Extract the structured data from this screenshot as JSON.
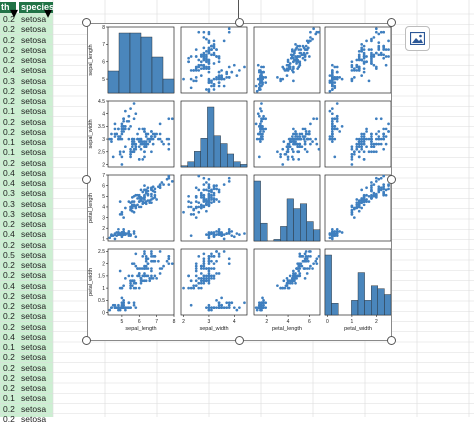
{
  "columns": {
    "left_header": "th",
    "species_header": "species"
  },
  "rows": [
    {
      "petal_width": "0.2",
      "species": "setosa"
    },
    {
      "petal_width": "0.2",
      "species": "setosa"
    },
    {
      "petal_width": "0.2",
      "species": "setosa"
    },
    {
      "petal_width": "0.2",
      "species": "setosa"
    },
    {
      "petal_width": "0.2",
      "species": "setosa"
    },
    {
      "petal_width": "0.4",
      "species": "setosa"
    },
    {
      "petal_width": "0.3",
      "species": "setosa"
    },
    {
      "petal_width": "0.2",
      "species": "setosa"
    },
    {
      "petal_width": "0.2",
      "species": "setosa"
    },
    {
      "petal_width": "0.1",
      "species": "setosa"
    },
    {
      "petal_width": "0.2",
      "species": "setosa"
    },
    {
      "petal_width": "0.2",
      "species": "setosa"
    },
    {
      "petal_width": "0.1",
      "species": "setosa"
    },
    {
      "petal_width": "0.1",
      "species": "setosa"
    },
    {
      "petal_width": "0.2",
      "species": "setosa"
    },
    {
      "petal_width": "0.4",
      "species": "setosa"
    },
    {
      "petal_width": "0.4",
      "species": "setosa"
    },
    {
      "petal_width": "0.3",
      "species": "setosa"
    },
    {
      "petal_width": "0.3",
      "species": "setosa"
    },
    {
      "petal_width": "0.3",
      "species": "setosa"
    },
    {
      "petal_width": "0.2",
      "species": "setosa"
    },
    {
      "petal_width": "0.4",
      "species": "setosa"
    },
    {
      "petal_width": "0.2",
      "species": "setosa"
    },
    {
      "petal_width": "0.5",
      "species": "setosa"
    },
    {
      "petal_width": "0.2",
      "species": "setosa"
    },
    {
      "petal_width": "0.2",
      "species": "setosa"
    },
    {
      "petal_width": "0.4",
      "species": "setosa"
    },
    {
      "petal_width": "0.2",
      "species": "setosa"
    },
    {
      "petal_width": "0.2",
      "species": "setosa"
    },
    {
      "petal_width": "0.2",
      "species": "setosa"
    },
    {
      "petal_width": "0.2",
      "species": "setosa"
    },
    {
      "petal_width": "0.4",
      "species": "setosa"
    },
    {
      "petal_width": "0.1",
      "species": "setosa"
    },
    {
      "petal_width": "0.2",
      "species": "setosa"
    },
    {
      "petal_width": "0.2",
      "species": "setosa"
    },
    {
      "petal_width": "0.2",
      "species": "setosa"
    },
    {
      "petal_width": "0.2",
      "species": "setosa"
    },
    {
      "petal_width": "0.1",
      "species": "setosa"
    },
    {
      "petal_width": "0.2",
      "species": "setosa"
    },
    {
      "petal_width": "0.2",
      "species": "setosa"
    }
  ],
  "chart_data": {
    "type": "pairplot",
    "variables": [
      "sepal_length",
      "sepal_width",
      "petal_length",
      "petal_width"
    ],
    "axis_ticks": {
      "sepal_length": [
        5,
        6,
        7,
        8
      ],
      "sepal_width": [
        2,
        3,
        4
      ],
      "petal_length": [
        2,
        4,
        6
      ],
      "petal_width": [
        0,
        1,
        2
      ]
    },
    "y_ticks": {
      "sepal_length": [
        5,
        6,
        7,
        8
      ],
      "sepal_width": [
        2.0,
        2.5,
        3.0,
        3.5,
        4.0,
        4.5
      ],
      "petal_length": [
        1,
        2,
        3,
        4,
        5,
        6,
        7
      ],
      "petal_width": [
        0.0,
        0.5,
        1.0,
        1.5,
        2.0,
        2.5
      ]
    },
    "ranges": {
      "sepal_length": [
        4.2,
        8.0
      ],
      "sepal_width": [
        1.9,
        4.5
      ],
      "petal_length": [
        0.8,
        7.0
      ],
      "petal_width": [
        -0.1,
        2.6
      ]
    },
    "histograms": {
      "sepal_length": [
        11,
        30,
        30,
        28,
        18,
        7
      ],
      "sepal_width": [
        1,
        4,
        12,
        22,
        46,
        24,
        18,
        10,
        4,
        2
      ],
      "petal_length": [
        37,
        11,
        0,
        1,
        9,
        26,
        20,
        23,
        12,
        7
      ],
      "petal_width": [
        41,
        8,
        0,
        0,
        10,
        29,
        10,
        20,
        18,
        14
      ]
    },
    "color": "#3f7fbf",
    "bar_color": "#4a86bc",
    "points": [
      [
        5.1,
        3.5,
        1.4,
        0.2
      ],
      [
        4.9,
        3.0,
        1.4,
        0.2
      ],
      [
        4.7,
        3.2,
        1.3,
        0.2
      ],
      [
        4.6,
        3.1,
        1.5,
        0.2
      ],
      [
        5.0,
        3.6,
        1.4,
        0.2
      ],
      [
        5.4,
        3.9,
        1.7,
        0.4
      ],
      [
        4.6,
        3.4,
        1.4,
        0.3
      ],
      [
        5.0,
        3.4,
        1.5,
        0.2
      ],
      [
        4.4,
        2.9,
        1.4,
        0.2
      ],
      [
        4.9,
        3.1,
        1.5,
        0.1
      ],
      [
        5.4,
        3.7,
        1.5,
        0.2
      ],
      [
        4.8,
        3.4,
        1.6,
        0.2
      ],
      [
        4.8,
        3.0,
        1.4,
        0.1
      ],
      [
        4.3,
        3.0,
        1.1,
        0.1
      ],
      [
        5.8,
        4.0,
        1.2,
        0.2
      ],
      [
        5.7,
        4.4,
        1.5,
        0.4
      ],
      [
        5.4,
        3.9,
        1.3,
        0.4
      ],
      [
        5.1,
        3.5,
        1.4,
        0.3
      ],
      [
        5.7,
        3.8,
        1.7,
        0.3
      ],
      [
        5.1,
        3.8,
        1.5,
        0.3
      ],
      [
        5.4,
        3.4,
        1.7,
        0.2
      ],
      [
        5.1,
        3.7,
        1.5,
        0.4
      ],
      [
        4.6,
        3.6,
        1.0,
        0.2
      ],
      [
        5.1,
        3.3,
        1.7,
        0.5
      ],
      [
        4.8,
        3.4,
        1.9,
        0.2
      ],
      [
        5.0,
        3.0,
        1.6,
        0.2
      ],
      [
        5.0,
        3.4,
        1.6,
        0.4
      ],
      [
        5.2,
        3.5,
        1.5,
        0.2
      ],
      [
        5.2,
        3.4,
        1.4,
        0.2
      ],
      [
        4.7,
        3.2,
        1.6,
        0.2
      ],
      [
        4.8,
        3.1,
        1.6,
        0.2
      ],
      [
        5.4,
        3.4,
        1.5,
        0.4
      ],
      [
        5.2,
        4.1,
        1.5,
        0.1
      ],
      [
        5.5,
        4.2,
        1.4,
        0.2
      ],
      [
        4.9,
        3.1,
        1.5,
        0.2
      ],
      [
        5.0,
        3.2,
        1.2,
        0.2
      ],
      [
        5.5,
        3.5,
        1.3,
        0.2
      ],
      [
        4.4,
        3.0,
        1.3,
        0.2
      ],
      [
        5.1,
        3.4,
        1.5,
        0.2
      ],
      [
        5.0,
        3.5,
        1.3,
        0.3
      ],
      [
        4.5,
        2.3,
        1.3,
        0.3
      ],
      [
        4.4,
        3.2,
        1.3,
        0.2
      ],
      [
        5.0,
        3.5,
        1.6,
        0.6
      ],
      [
        5.1,
        3.8,
        1.9,
        0.4
      ],
      [
        4.8,
        3.0,
        1.4,
        0.3
      ],
      [
        5.1,
        3.8,
        1.6,
        0.2
      ],
      [
        4.6,
        3.2,
        1.4,
        0.2
      ],
      [
        5.3,
        3.7,
        1.5,
        0.2
      ],
      [
        5.0,
        3.3,
        1.4,
        0.2
      ],
      [
        7.0,
        3.2,
        4.7,
        1.4
      ],
      [
        6.4,
        3.2,
        4.5,
        1.5
      ],
      [
        6.9,
        3.1,
        4.9,
        1.5
      ],
      [
        5.5,
        2.3,
        4.0,
        1.3
      ],
      [
        6.5,
        2.8,
        4.6,
        1.5
      ],
      [
        5.7,
        2.8,
        4.5,
        1.3
      ],
      [
        6.3,
        3.3,
        4.7,
        1.6
      ],
      [
        4.9,
        2.4,
        3.3,
        1.0
      ],
      [
        6.6,
        2.9,
        4.6,
        1.3
      ],
      [
        5.2,
        2.7,
        3.9,
        1.4
      ],
      [
        5.0,
        2.0,
        3.5,
        1.0
      ],
      [
        5.9,
        3.0,
        4.2,
        1.5
      ],
      [
        6.0,
        2.2,
        4.0,
        1.0
      ],
      [
        6.1,
        2.9,
        4.7,
        1.4
      ],
      [
        5.6,
        2.9,
        3.6,
        1.3
      ],
      [
        6.7,
        3.1,
        4.4,
        1.4
      ],
      [
        5.6,
        3.0,
        4.5,
        1.5
      ],
      [
        5.8,
        2.7,
        4.1,
        1.0
      ],
      [
        6.2,
        2.2,
        4.5,
        1.5
      ],
      [
        5.6,
        2.5,
        3.9,
        1.1
      ],
      [
        5.9,
        3.2,
        4.8,
        1.8
      ],
      [
        6.1,
        2.8,
        4.0,
        1.3
      ],
      [
        6.3,
        2.5,
        4.9,
        1.5
      ],
      [
        6.1,
        2.8,
        4.7,
        1.2
      ],
      [
        6.4,
        2.9,
        4.3,
        1.3
      ],
      [
        6.6,
        3.0,
        4.4,
        1.4
      ],
      [
        6.8,
        2.8,
        4.8,
        1.4
      ],
      [
        6.7,
        3.0,
        5.0,
        1.7
      ],
      [
        6.0,
        2.9,
        4.5,
        1.5
      ],
      [
        5.7,
        2.6,
        3.5,
        1.0
      ],
      [
        5.5,
        2.4,
        3.8,
        1.1
      ],
      [
        5.5,
        2.4,
        3.7,
        1.0
      ],
      [
        5.8,
        2.7,
        3.9,
        1.2
      ],
      [
        6.0,
        2.7,
        5.1,
        1.6
      ],
      [
        5.4,
        3.0,
        4.5,
        1.5
      ],
      [
        6.0,
        3.4,
        4.5,
        1.6
      ],
      [
        6.7,
        3.1,
        4.7,
        1.5
      ],
      [
        6.3,
        2.3,
        4.4,
        1.3
      ],
      [
        5.6,
        3.0,
        4.1,
        1.3
      ],
      [
        5.5,
        2.5,
        4.0,
        1.3
      ],
      [
        5.5,
        2.6,
        4.4,
        1.2
      ],
      [
        6.1,
        3.0,
        4.6,
        1.4
      ],
      [
        5.8,
        2.6,
        4.0,
        1.2
      ],
      [
        5.0,
        2.3,
        3.3,
        1.0
      ],
      [
        5.6,
        2.7,
        4.2,
        1.3
      ],
      [
        5.7,
        3.0,
        4.2,
        1.2
      ],
      [
        5.7,
        2.9,
        4.2,
        1.3
      ],
      [
        6.2,
        2.9,
        4.3,
        1.3
      ],
      [
        5.1,
        2.5,
        3.0,
        1.1
      ],
      [
        5.7,
        2.8,
        4.1,
        1.3
      ],
      [
        6.3,
        3.3,
        6.0,
        2.5
      ],
      [
        5.8,
        2.7,
        5.1,
        1.9
      ],
      [
        7.1,
        3.0,
        5.9,
        2.1
      ],
      [
        6.3,
        2.9,
        5.6,
        1.8
      ],
      [
        6.5,
        3.0,
        5.8,
        2.2
      ],
      [
        7.6,
        3.0,
        6.6,
        2.1
      ],
      [
        4.9,
        2.5,
        4.5,
        1.7
      ],
      [
        7.3,
        2.9,
        6.3,
        1.8
      ],
      [
        6.7,
        2.5,
        5.8,
        1.8
      ],
      [
        7.2,
        3.6,
        6.1,
        2.5
      ],
      [
        6.5,
        3.2,
        5.1,
        2.0
      ],
      [
        6.4,
        2.7,
        5.3,
        1.9
      ],
      [
        6.8,
        3.0,
        5.5,
        2.1
      ],
      [
        5.7,
        2.5,
        5.0,
        2.0
      ],
      [
        5.8,
        2.8,
        5.1,
        2.4
      ],
      [
        6.4,
        3.2,
        5.3,
        2.3
      ],
      [
        6.5,
        3.0,
        5.5,
        1.8
      ],
      [
        7.7,
        3.8,
        6.7,
        2.2
      ],
      [
        7.7,
        2.6,
        6.9,
        2.3
      ],
      [
        6.0,
        2.2,
        5.0,
        1.5
      ],
      [
        6.9,
        3.2,
        5.7,
        2.3
      ],
      [
        5.6,
        2.8,
        4.9,
        2.0
      ],
      [
        7.7,
        2.8,
        6.7,
        2.0
      ],
      [
        6.3,
        2.7,
        4.9,
        1.8
      ],
      [
        6.7,
        3.3,
        5.7,
        2.1
      ],
      [
        7.2,
        3.2,
        6.0,
        1.8
      ],
      [
        6.2,
        2.8,
        4.8,
        1.8
      ],
      [
        6.1,
        3.0,
        4.9,
        1.8
      ],
      [
        6.4,
        2.8,
        5.6,
        2.1
      ],
      [
        7.2,
        3.0,
        5.8,
        1.6
      ],
      [
        7.4,
        2.8,
        6.1,
        1.9
      ],
      [
        7.9,
        3.8,
        6.4,
        2.0
      ],
      [
        6.4,
        2.8,
        5.6,
        2.2
      ],
      [
        6.3,
        2.8,
        5.1,
        1.5
      ],
      [
        6.1,
        2.6,
        5.6,
        1.4
      ],
      [
        7.7,
        3.0,
        6.1,
        2.3
      ],
      [
        6.3,
        3.4,
        5.6,
        2.4
      ],
      [
        6.4,
        3.1,
        5.5,
        1.8
      ],
      [
        6.0,
        3.0,
        4.8,
        1.8
      ],
      [
        6.9,
        3.1,
        5.4,
        2.1
      ],
      [
        6.7,
        3.1,
        5.6,
        2.4
      ],
      [
        6.9,
        3.1,
        5.1,
        2.3
      ],
      [
        6.8,
        3.2,
        5.9,
        2.3
      ],
      [
        6.7,
        3.3,
        5.7,
        2.5
      ],
      [
        6.7,
        3.0,
        5.2,
        2.3
      ],
      [
        6.3,
        2.5,
        5.0,
        1.9
      ],
      [
        6.5,
        3.0,
        5.2,
        2.0
      ],
      [
        6.2,
        3.4,
        5.4,
        2.3
      ],
      [
        5.9,
        3.0,
        5.1,
        1.8
      ]
    ]
  }
}
